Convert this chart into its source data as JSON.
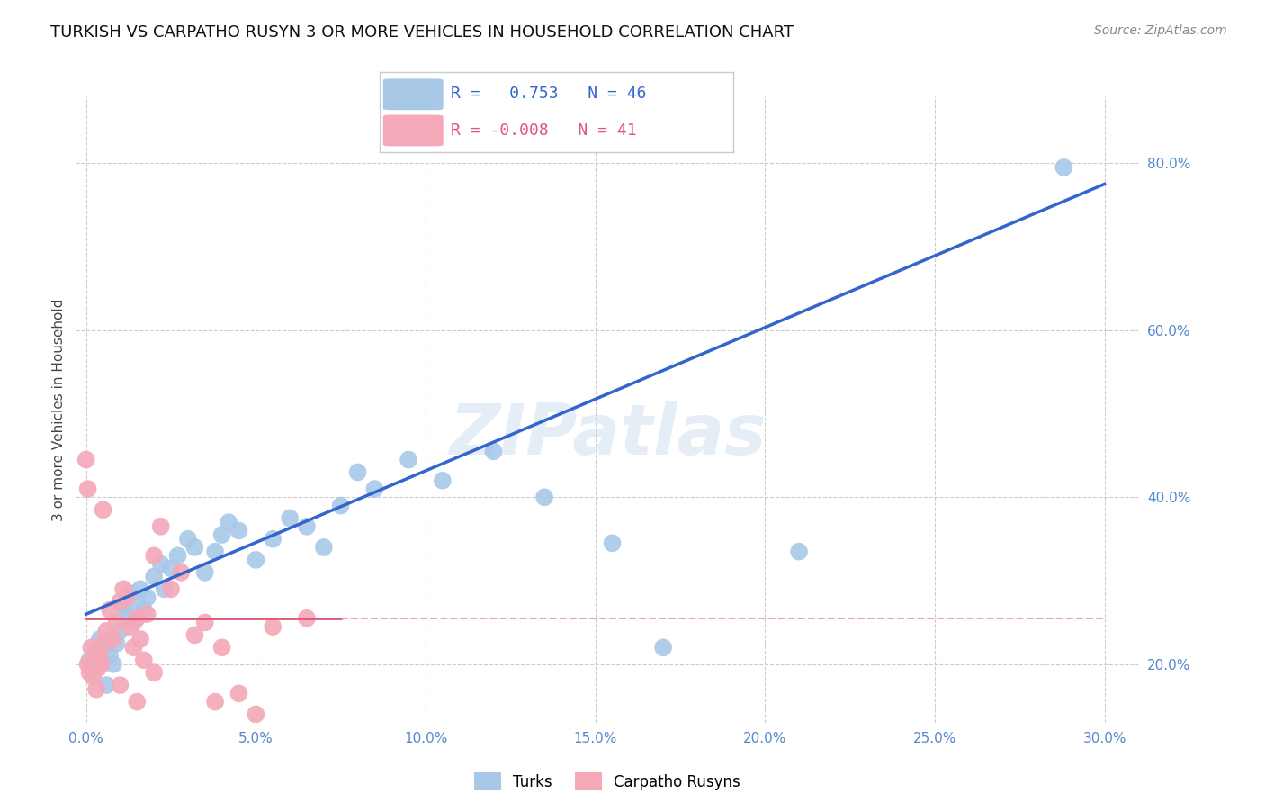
{
  "title": "TURKISH VS CARPATHO RUSYN 3 OR MORE VEHICLES IN HOUSEHOLD CORRELATION CHART",
  "source": "Source: ZipAtlas.com",
  "xlabel_vals": [
    0.0,
    5.0,
    10.0,
    15.0,
    20.0,
    25.0,
    30.0
  ],
  "ylabel_vals": [
    20.0,
    40.0,
    60.0,
    80.0
  ],
  "xmin": -0.3,
  "xmax": 31.0,
  "ymin": 13.0,
  "ymax": 88.0,
  "ylabel_label": "3 or more Vehicles in Household",
  "blue_R": 0.753,
  "blue_N": 46,
  "pink_R": -0.008,
  "pink_N": 41,
  "blue_color": "#a8c8e8",
  "pink_color": "#f4a8b8",
  "blue_line_color": "#3366cc",
  "pink_line_color": "#e05878",
  "pink_dashed_color": "#e090a0",
  "watermark": "ZIPatlas",
  "blue_points": [
    [
      0.1,
      20.5
    ],
    [
      0.2,
      19.0
    ],
    [
      0.3,
      21.5
    ],
    [
      0.4,
      23.0
    ],
    [
      0.5,
      22.0
    ],
    [
      0.6,
      17.5
    ],
    [
      0.7,
      21.0
    ],
    [
      0.8,
      20.0
    ],
    [
      0.9,
      22.5
    ],
    [
      1.0,
      24.0
    ],
    [
      1.1,
      27.0
    ],
    [
      1.2,
      26.0
    ],
    [
      1.3,
      28.5
    ],
    [
      1.4,
      25.0
    ],
    [
      1.5,
      27.5
    ],
    [
      1.6,
      29.0
    ],
    [
      1.7,
      26.5
    ],
    [
      1.8,
      28.0
    ],
    [
      2.0,
      30.5
    ],
    [
      2.2,
      32.0
    ],
    [
      2.3,
      29.0
    ],
    [
      2.5,
      31.5
    ],
    [
      2.7,
      33.0
    ],
    [
      3.0,
      35.0
    ],
    [
      3.2,
      34.0
    ],
    [
      3.5,
      31.0
    ],
    [
      3.8,
      33.5
    ],
    [
      4.0,
      35.5
    ],
    [
      4.2,
      37.0
    ],
    [
      4.5,
      36.0
    ],
    [
      5.0,
      32.5
    ],
    [
      5.5,
      35.0
    ],
    [
      6.0,
      37.5
    ],
    [
      6.5,
      36.5
    ],
    [
      7.0,
      34.0
    ],
    [
      7.5,
      39.0
    ],
    [
      8.0,
      43.0
    ],
    [
      8.5,
      41.0
    ],
    [
      9.5,
      44.5
    ],
    [
      10.5,
      42.0
    ],
    [
      12.0,
      45.5
    ],
    [
      13.5,
      40.0
    ],
    [
      15.5,
      34.5
    ],
    [
      17.0,
      22.0
    ],
    [
      21.0,
      33.5
    ],
    [
      28.8,
      79.5
    ]
  ],
  "pink_points": [
    [
      0.05,
      20.0
    ],
    [
      0.1,
      19.0
    ],
    [
      0.15,
      22.0
    ],
    [
      0.2,
      18.5
    ],
    [
      0.25,
      21.0
    ],
    [
      0.3,
      17.0
    ],
    [
      0.35,
      19.5
    ],
    [
      0.4,
      21.0
    ],
    [
      0.45,
      20.0
    ],
    [
      0.5,
      22.5
    ],
    [
      0.6,
      24.0
    ],
    [
      0.7,
      26.5
    ],
    [
      0.8,
      23.0
    ],
    [
      0.9,
      25.0
    ],
    [
      1.0,
      27.5
    ],
    [
      1.1,
      29.0
    ],
    [
      1.2,
      28.0
    ],
    [
      1.3,
      24.5
    ],
    [
      1.4,
      22.0
    ],
    [
      1.5,
      25.5
    ],
    [
      1.6,
      23.0
    ],
    [
      1.7,
      20.5
    ],
    [
      1.8,
      26.0
    ],
    [
      2.0,
      33.0
    ],
    [
      2.2,
      36.5
    ],
    [
      2.5,
      29.0
    ],
    [
      2.8,
      31.0
    ],
    [
      3.2,
      23.5
    ],
    [
      3.5,
      25.0
    ],
    [
      4.0,
      22.0
    ],
    [
      0.0,
      44.5
    ],
    [
      0.05,
      41.0
    ],
    [
      0.5,
      38.5
    ],
    [
      1.0,
      17.5
    ],
    [
      1.5,
      15.5
    ],
    [
      2.0,
      19.0
    ],
    [
      4.5,
      16.5
    ],
    [
      5.5,
      24.5
    ],
    [
      5.0,
      14.0
    ],
    [
      6.5,
      25.5
    ],
    [
      3.8,
      15.5
    ]
  ],
  "blue_regline": [
    [
      0.0,
      26.0
    ],
    [
      30.0,
      77.5
    ]
  ],
  "pink_solid_line_x": [
    0.0,
    7.5
  ],
  "pink_solid_line_y": [
    25.5,
    25.5
  ],
  "pink_dashed_line_x": [
    7.5,
    30.0
  ],
  "pink_dashed_line_y": [
    25.5,
    25.5
  ]
}
